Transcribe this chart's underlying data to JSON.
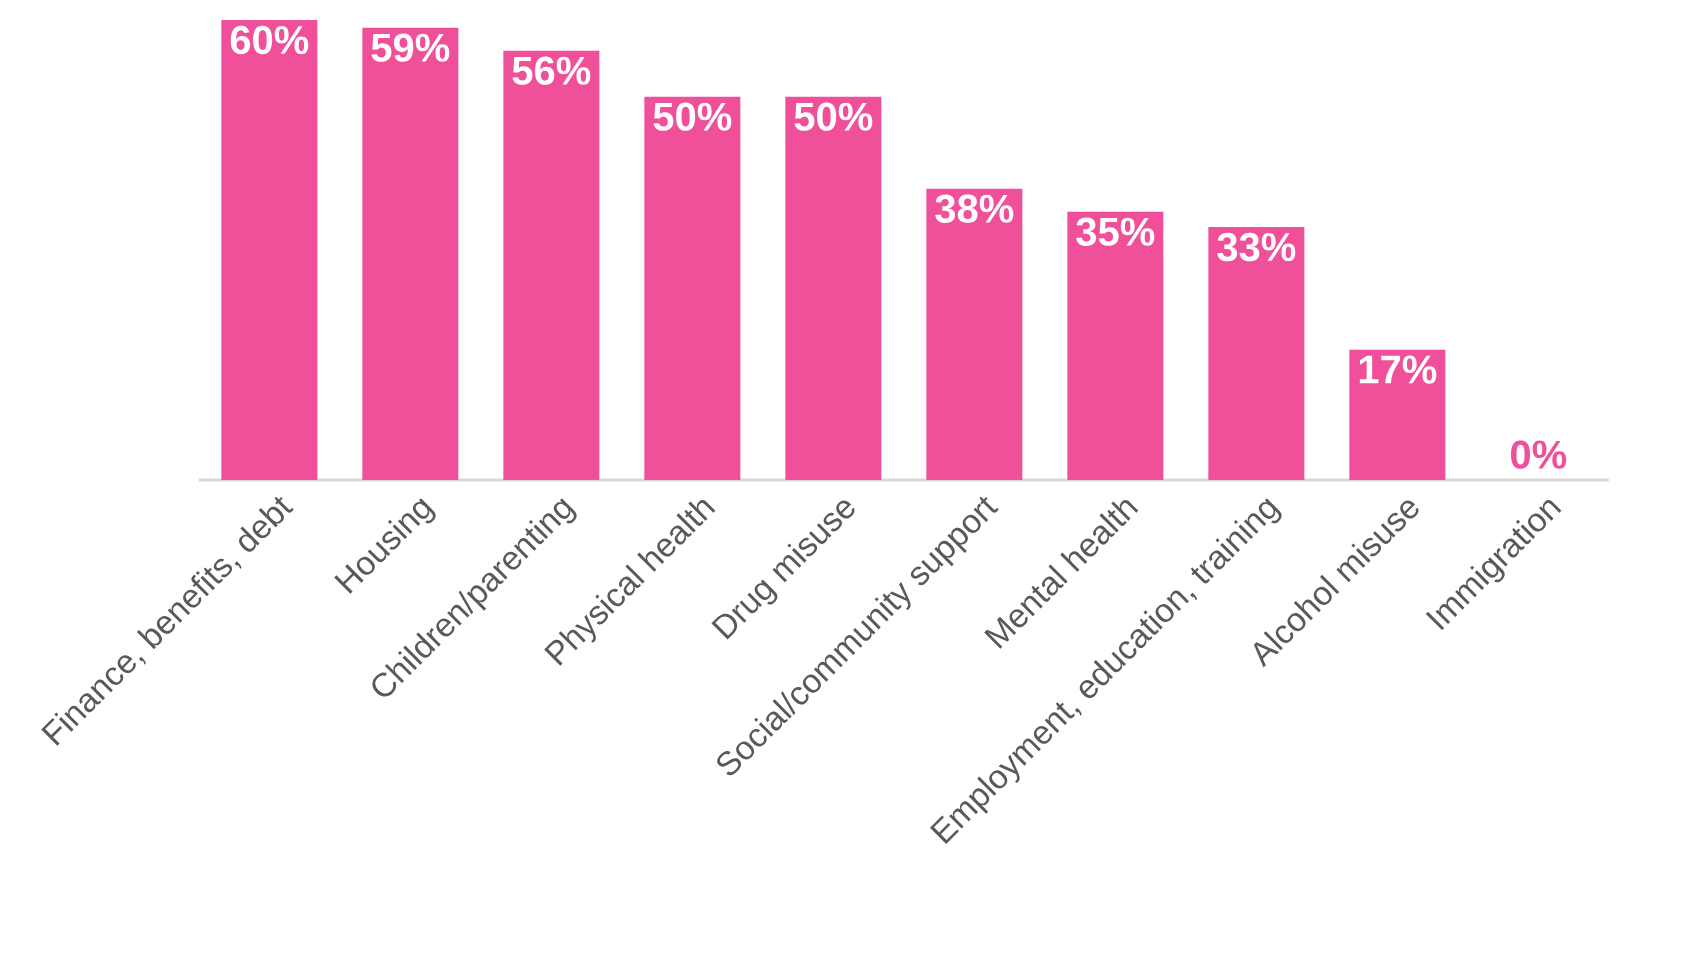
{
  "chart_data": {
    "type": "bar",
    "categories": [
      "Finance, benefits, debt",
      "Housing",
      "Children/parenting",
      "Physical health",
      "Drug misuse",
      "Social/community support",
      "Mental health",
      "Employment, education, training",
      "Alcohol misuse",
      "Immigration"
    ],
    "values": [
      60,
      59,
      56,
      50,
      50,
      38,
      35,
      33,
      17,
      0
    ],
    "value_labels": [
      "60%",
      "59%",
      "56%",
      "50%",
      "50%",
      "38%",
      "35%",
      "33%",
      "17%",
      "0%"
    ],
    "color": "#f0509a"
  }
}
